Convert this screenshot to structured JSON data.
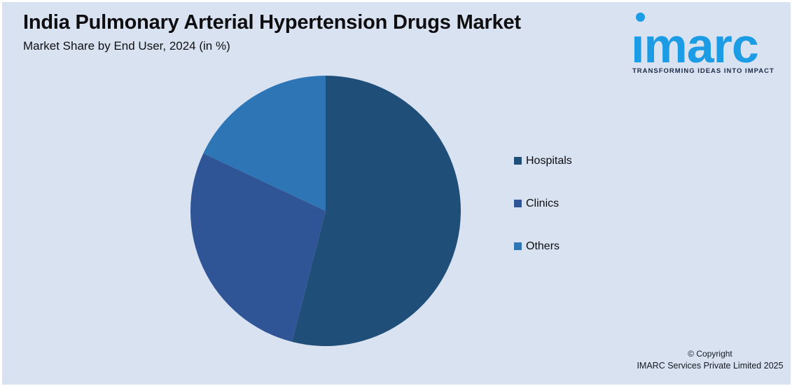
{
  "page": {
    "background": "#d9e2f0",
    "frame_color": "#ffffff"
  },
  "header": {
    "title": "India Pulmonary Arterial Hypertension Drugs Market",
    "subtitle": "Market Share by End User, 2024 (in %)"
  },
  "logo": {
    "wordmark": "imarc",
    "tagline": "TRANSFORMING IDEAS INTO IMPACT",
    "brand_color": "#1b9ce4",
    "tagline_color": "#1c2b4a"
  },
  "chart_data": {
    "type": "pie",
    "title": "India Pulmonary Arterial Hypertension Drugs Market — Market Share by End User, 2024 (in %)",
    "labels": [
      "Hospitals",
      "Clinics",
      "Others"
    ],
    "values": [
      54,
      28,
      18
    ],
    "unit": "%",
    "colors": [
      "#1f4e79",
      "#2f5597",
      "#2e75b6"
    ],
    "start_angle_deg": 0,
    "direction": "clockwise",
    "legend_position": "right",
    "data_labels": false
  },
  "footer": {
    "copyright_line1": "© Copyright",
    "copyright_line2": "IMARC Services Private Limited 2025"
  }
}
